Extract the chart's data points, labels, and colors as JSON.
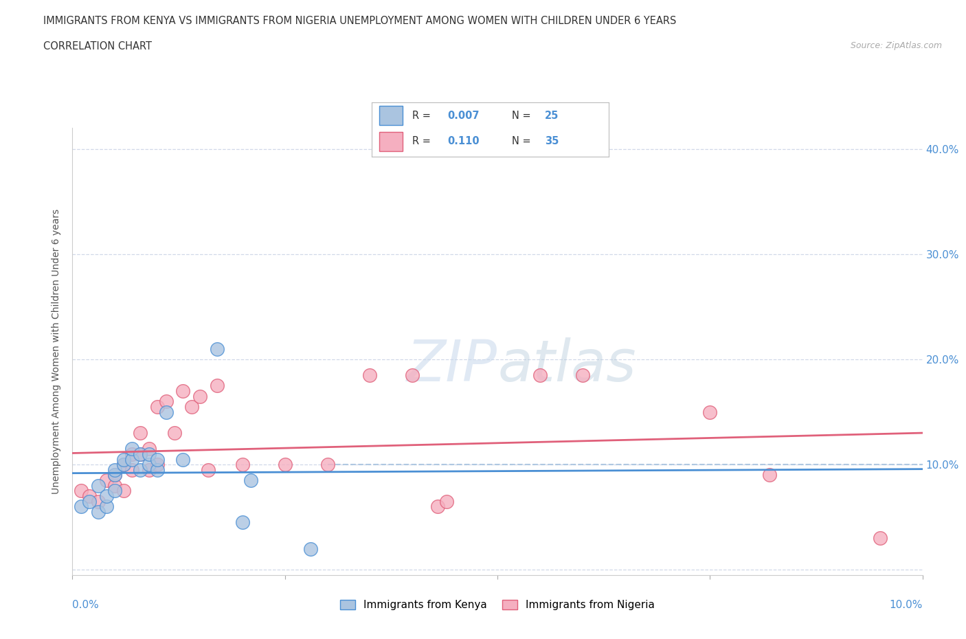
{
  "title_line1": "IMMIGRANTS FROM KENYA VS IMMIGRANTS FROM NIGERIA UNEMPLOYMENT AMONG WOMEN WITH CHILDREN UNDER 6 YEARS",
  "title_line2": "CORRELATION CHART",
  "source": "Source: ZipAtlas.com",
  "ylabel": "Unemployment Among Women with Children Under 6 years",
  "ytick_values": [
    0.0,
    0.1,
    0.2,
    0.3,
    0.4
  ],
  "ytick_right_labels": [
    "",
    "10.0%",
    "20.0%",
    "30.0%",
    "40.0%"
  ],
  "xlim": [
    0.0,
    0.1
  ],
  "ylim": [
    -0.005,
    0.42
  ],
  "legend_kenya": "Immigrants from Kenya",
  "legend_nigeria": "Immigrants from Nigeria",
  "r_kenya": "0.007",
  "n_kenya": "25",
  "r_nigeria": "0.110",
  "n_nigeria": "35",
  "color_kenya": "#aac4e0",
  "color_nigeria": "#f5afc0",
  "line_color_kenya": "#4a8fd4",
  "line_color_nigeria": "#e0607a",
  "dashed_line_color": "#aac4e0",
  "dashed_line_y": 0.1,
  "watermark_zip": "ZIP",
  "watermark_atlas": "atlas",
  "kenya_x": [
    0.001,
    0.002,
    0.003,
    0.003,
    0.004,
    0.004,
    0.005,
    0.005,
    0.005,
    0.006,
    0.006,
    0.007,
    0.007,
    0.008,
    0.008,
    0.009,
    0.009,
    0.01,
    0.01,
    0.011,
    0.013,
    0.017,
    0.02,
    0.021,
    0.028
  ],
  "kenya_y": [
    0.06,
    0.065,
    0.055,
    0.08,
    0.06,
    0.07,
    0.075,
    0.09,
    0.095,
    0.1,
    0.105,
    0.105,
    0.115,
    0.095,
    0.11,
    0.1,
    0.11,
    0.095,
    0.105,
    0.15,
    0.105,
    0.21,
    0.045,
    0.085,
    0.02
  ],
  "nigeria_x": [
    0.001,
    0.002,
    0.003,
    0.004,
    0.005,
    0.005,
    0.006,
    0.006,
    0.007,
    0.007,
    0.008,
    0.008,
    0.009,
    0.009,
    0.01,
    0.01,
    0.011,
    0.012,
    0.013,
    0.014,
    0.015,
    0.016,
    0.017,
    0.02,
    0.025,
    0.03,
    0.035,
    0.04,
    0.043,
    0.044,
    0.055,
    0.06,
    0.075,
    0.082,
    0.095
  ],
  "nigeria_y": [
    0.075,
    0.07,
    0.065,
    0.085,
    0.08,
    0.09,
    0.075,
    0.1,
    0.095,
    0.11,
    0.11,
    0.13,
    0.095,
    0.115,
    0.1,
    0.155,
    0.16,
    0.13,
    0.17,
    0.155,
    0.165,
    0.095,
    0.175,
    0.1,
    0.1,
    0.1,
    0.185,
    0.185,
    0.06,
    0.065,
    0.185,
    0.185,
    0.15,
    0.09,
    0.03
  ],
  "title_fontsize": 11,
  "axis_label_color": "#4a8fd4",
  "grid_color": "#d0d8e8",
  "bg_color": "#ffffff"
}
